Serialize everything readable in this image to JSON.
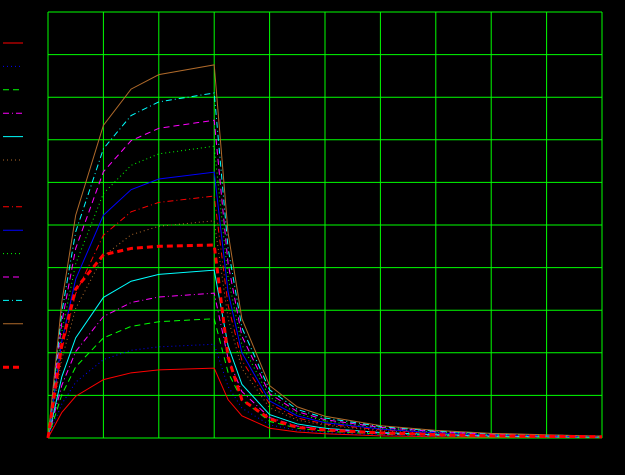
{
  "chart_data": {
    "type": "line",
    "grid": true,
    "grid_color": "#00ff00",
    "background": "#000000",
    "xlim": [
      0,
      10
    ],
    "ylim": [
      0,
      10
    ],
    "xticks": [
      0,
      1,
      2,
      3,
      4,
      5,
      6,
      7,
      8,
      9,
      10
    ],
    "yticks": [
      0,
      1,
      2,
      3,
      4,
      5,
      6,
      7,
      8,
      9,
      10
    ],
    "x": [
      0,
      0.25,
      0.5,
      1,
      1.5,
      2,
      3,
      3.25,
      3.5,
      4,
      4.5,
      5,
      6,
      7,
      8,
      10
    ],
    "series": [
      {
        "color": "#ff0000",
        "dash": "solid",
        "width": 1,
        "values": [
          0,
          0.6,
          0.98,
          1.37,
          1.53,
          1.6,
          1.64,
          0.9,
          0.52,
          0.23,
          0.14,
          0.1,
          0.05,
          0.03,
          0.02,
          0.01
        ]
      },
      {
        "color": "#0000ff",
        "dash": "dotted",
        "width": 1,
        "values": [
          0,
          0.8,
          1.31,
          1.84,
          2.06,
          2.14,
          2.2,
          1.21,
          0.7,
          0.31,
          0.18,
          0.13,
          0.07,
          0.04,
          0.03,
          0.01
        ]
      },
      {
        "color": "#00ff00",
        "dash": "dashed",
        "width": 1,
        "values": [
          0,
          1.02,
          1.67,
          2.35,
          2.62,
          2.73,
          2.8,
          1.54,
          0.9,
          0.39,
          0.23,
          0.16,
          0.09,
          0.06,
          0.03,
          0.01
        ]
      },
      {
        "color": "#ff00ff",
        "dash": "dashdot",
        "width": 1,
        "values": [
          0,
          1.24,
          2.03,
          2.85,
          3.18,
          3.31,
          3.4,
          1.87,
          1.09,
          0.48,
          0.28,
          0.2,
          0.11,
          0.07,
          0.04,
          0.02
        ]
      },
      {
        "color": "#00ffff",
        "dash": "solid",
        "width": 1,
        "values": [
          0,
          1.44,
          2.35,
          3.3,
          3.68,
          3.84,
          3.94,
          2.17,
          1.26,
          0.55,
          0.33,
          0.23,
          0.13,
          0.08,
          0.05,
          0.02
        ]
      },
      {
        "color": "#b06a2a",
        "dash": "dotted",
        "width": 1,
        "values": [
          0,
          1.86,
          3.04,
          4.27,
          4.77,
          4.97,
          5.1,
          2.81,
          1.63,
          0.71,
          0.42,
          0.3,
          0.17,
          0.1,
          0.06,
          0.03
        ]
      },
      {
        "color": "#ff0000",
        "dash": "dashdot",
        "width": 1,
        "values": [
          0,
          2.07,
          3.39,
          4.76,
          5.31,
          5.53,
          5.68,
          3.12,
          1.82,
          0.8,
          0.47,
          0.33,
          0.19,
          0.11,
          0.07,
          0.03
        ]
      },
      {
        "color": "#0000ff",
        "dash": "solid",
        "width": 1,
        "values": [
          0,
          2.28,
          3.73,
          5.23,
          5.83,
          6.08,
          6.24,
          3.43,
          2,
          0.87,
          0.52,
          0.36,
          0.21,
          0.12,
          0.07,
          0.03
        ]
      },
      {
        "color": "#00ff00",
        "dash": "dotted",
        "width": 1,
        "values": [
          0,
          2.5,
          4.09,
          5.74,
          6.4,
          6.67,
          6.85,
          3.77,
          2.19,
          0.96,
          0.57,
          0.4,
          0.23,
          0.14,
          0.08,
          0.03
        ]
      },
      {
        "color": "#ff00ff",
        "dash": "dashed",
        "width": 1,
        "values": [
          0,
          2.72,
          4.45,
          6.25,
          6.98,
          7.27,
          7.46,
          4.1,
          2.39,
          1.04,
          0.62,
          0.43,
          0.25,
          0.15,
          0.09,
          0.04
        ]
      },
      {
        "color": "#00ffff",
        "dash": "dashdot",
        "width": 1,
        "values": [
          0,
          2.96,
          4.84,
          6.79,
          7.57,
          7.89,
          8.1,
          4.46,
          2.59,
          1.13,
          0.67,
          0.47,
          0.27,
          0.16,
          0.1,
          0.04
        ]
      },
      {
        "color": "#b06a2a",
        "dash": "solid",
        "width": 1,
        "values": [
          0,
          3.2,
          5.23,
          7.34,
          8.19,
          8.53,
          8.76,
          4.82,
          2.8,
          1.23,
          0.73,
          0.51,
          0.29,
          0.18,
          0.11,
          0.04
        ]
      },
      {
        "color": "#ff0000",
        "dash": "dashed",
        "width": 3,
        "values": [
          0,
          2.2,
          3.5,
          4.3,
          4.45,
          4.5,
          4.53,
          1.9,
          0.9,
          0.45,
          0.25,
          0.19,
          0.12,
          0.08,
          0.05,
          0.03
        ]
      }
    ]
  }
}
